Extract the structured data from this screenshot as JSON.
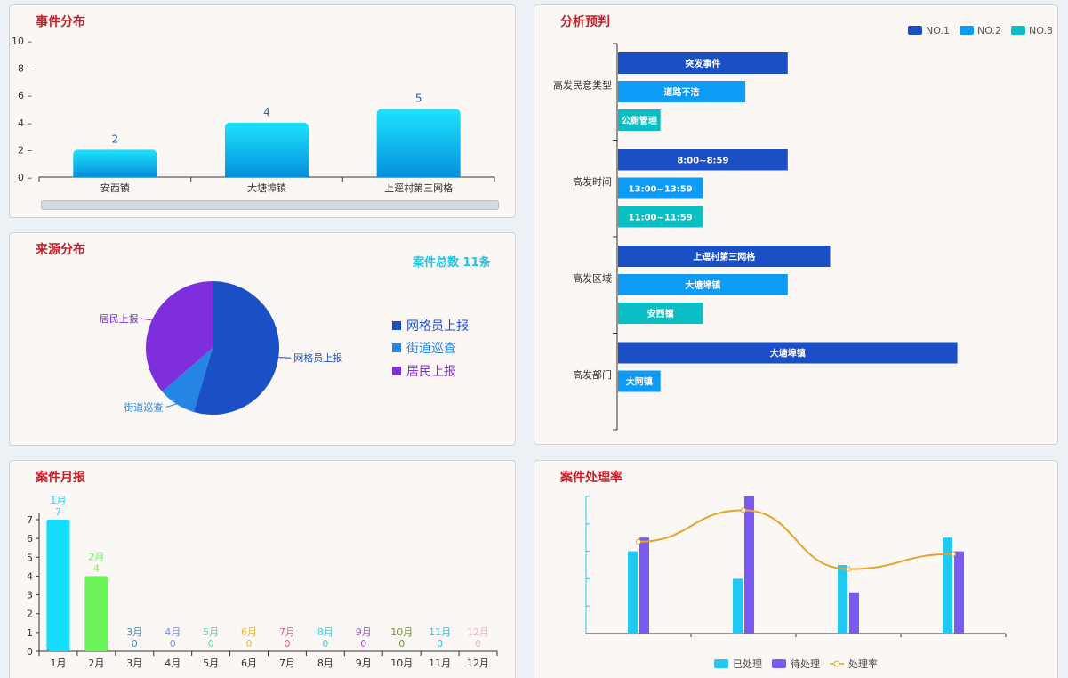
{
  "event_panel": {
    "title": "事件分布",
    "chart_data": {
      "type": "bar",
      "categories": [
        "安西镇",
        "大塘埠镇",
        "上逕村第三网格"
      ],
      "values": [
        2,
        4,
        5
      ],
      "ylim": [
        0,
        10
      ],
      "yticks": [
        0,
        2,
        4,
        6,
        8,
        10
      ],
      "colors": [
        "#1de3fb",
        "#0590dd"
      ]
    }
  },
  "source_panel": {
    "title": "来源分布",
    "total_label": "案件总数 11条",
    "chart_data": {
      "type": "pie",
      "slices": [
        {
          "name": "网格员上报",
          "value": 6,
          "color": "#1b4fc6"
        },
        {
          "name": "街道巡查",
          "value": 1,
          "color": "#2585e4"
        },
        {
          "name": "居民上报",
          "value": 4,
          "color": "#7e2fdb"
        }
      ]
    },
    "legend": [
      "网格员上报",
      "街道巡查",
      "居民上报"
    ]
  },
  "analysis_panel": {
    "title": "分析预判",
    "legend": [
      {
        "name": "NO.1",
        "color": "#1b4fc6"
      },
      {
        "name": "NO.2",
        "color": "#0d9bf5"
      },
      {
        "name": "NO.3",
        "color": "#0bbec3"
      }
    ],
    "chart_data": {
      "type": "bar",
      "orientation": "horizontal",
      "groups": [
        {
          "name": "高发民意类型",
          "bars": [
            {
              "label": "突发事件",
              "value": 4
            },
            {
              "label": "道路不洁",
              "value": 3
            },
            {
              "label": "公厕管理",
              "value": 1
            }
          ]
        },
        {
          "name": "高发时间",
          "bars": [
            {
              "label": "8:00~8:59",
              "value": 4
            },
            {
              "label": "13:00~13:59",
              "value": 2
            },
            {
              "label": "11:00~11:59",
              "value": 2
            }
          ]
        },
        {
          "name": "高发区域",
          "bars": [
            {
              "label": "上逕村第三网格",
              "value": 5
            },
            {
              "label": "大塘埠镇",
              "value": 4
            },
            {
              "label": "安西镇",
              "value": 2
            }
          ]
        },
        {
          "name": "高发部门",
          "bars": [
            {
              "label": "大塘埠镇",
              "value": 8
            },
            {
              "label": "大阿镇",
              "value": 1
            }
          ]
        }
      ]
    }
  },
  "monthly_panel": {
    "title": "案件月报",
    "chart_data": {
      "type": "bar",
      "categories": [
        "1月",
        "2月",
        "3月",
        "4月",
        "5月",
        "6月",
        "7月",
        "8月",
        "9月",
        "10月",
        "11月",
        "12月"
      ],
      "values": [
        7,
        4,
        0,
        0,
        0,
        0,
        0,
        0,
        0,
        0,
        0,
        0
      ],
      "colors": [
        "#13ddf8",
        "#6cf45a",
        "#2c8fd9",
        "#7a8ef0",
        "#4dd8a5",
        "#f0b23a",
        "#e4606c",
        "#3fd0de",
        "#9a5ae0",
        "#6f9a2a",
        "#3ab7e8",
        "#f6b2cc"
      ],
      "ylim": [
        0,
        7
      ],
      "yticks": [
        0,
        1,
        2,
        3,
        4,
        5,
        6,
        7
      ]
    }
  },
  "rate_panel": {
    "title": "案件处理率",
    "legend": [
      {
        "name": "已处理",
        "color": "#22c8f0"
      },
      {
        "name": "待处理",
        "color": "#7a5af0"
      },
      {
        "name": "处理率",
        "color": "#e6a52a"
      }
    ],
    "chart_data": {
      "type": "bar",
      "categories": [
        "",
        "",
        "",
        ""
      ],
      "series": [
        {
          "name": "已处理",
          "values": [
            3,
            2,
            2.5,
            3.5
          ]
        },
        {
          "name": "待处理",
          "values": [
            3.5,
            5,
            1.5,
            3
          ]
        },
        {
          "name": "处理率",
          "values": [
            0.67,
            0.9,
            0.47,
            0.58
          ]
        }
      ],
      "ylim": [
        0,
        5
      ]
    }
  }
}
